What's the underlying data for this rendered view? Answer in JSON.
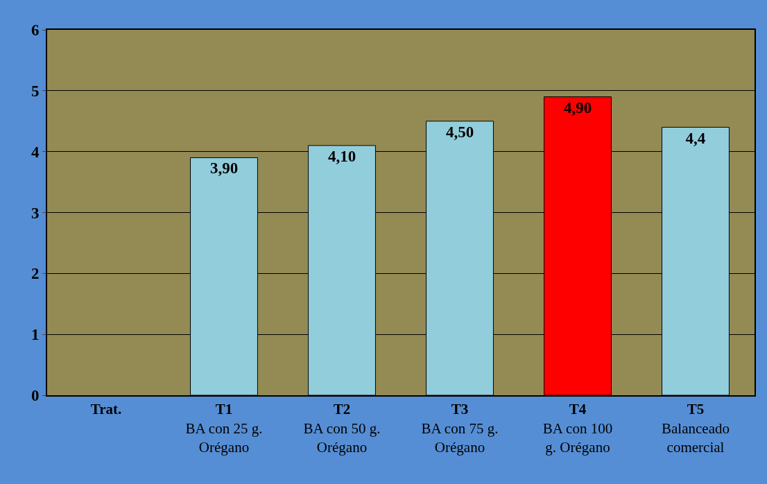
{
  "chart_data": {
    "type": "bar",
    "categories": [
      "Trat.",
      "T1\nBA con 25 g.\nOrégano",
      "T2\nBA con 50 g.\nOrégano",
      "T3\nBA con 75 g.\nOrégano",
      "T4\nBA con 100\ng. Orégano",
      "T5\nBalanceado\ncomercial"
    ],
    "values": [
      null,
      3.9,
      4.1,
      4.5,
      4.9,
      4.4
    ],
    "colors": [
      null,
      "#92cddc",
      "#92cddc",
      "#92cddc",
      "#ff0000",
      "#92cddc"
    ],
    "value_labels": [
      null,
      "3,90",
      "4,10",
      "4,50",
      "4,90",
      "4,4"
    ],
    "ylim": [
      0,
      6
    ],
    "yticks": [
      0,
      1,
      2,
      3,
      4,
      5,
      6
    ],
    "grid": "y"
  }
}
